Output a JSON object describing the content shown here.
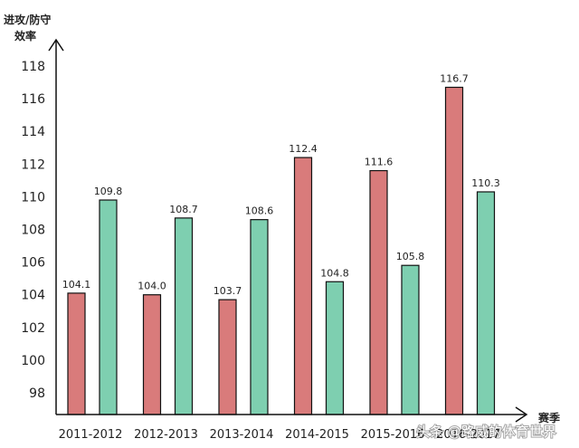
{
  "chart_data": {
    "type": "bar",
    "ylabel_line1": "进攻/防守",
    "ylabel_line2": "效率",
    "xlabel": "赛季",
    "categories": [
      "2011-2012",
      "2012-2013",
      "2013-2014",
      "2014-2015",
      "2015-2016",
      "2016-2017"
    ],
    "series": [
      {
        "values": [
          104.1,
          104.0,
          103.7,
          112.4,
          111.6,
          116.7
        ]
      },
      {
        "values": [
          109.8,
          108.7,
          108.6,
          104.8,
          105.8,
          110.3
        ]
      }
    ],
    "yticks": [
      98,
      100,
      102,
      104,
      106,
      108,
      110,
      112,
      114,
      116,
      118
    ],
    "ylim": [
      96.6,
      120
    ],
    "grid": false
  },
  "colors": {
    "series1": "#d97b7b",
    "series2": "#7ecfb0",
    "axis": "#111111",
    "bar_stroke": "#111111"
  },
  "watermark": "头条 @路威的体育世界"
}
